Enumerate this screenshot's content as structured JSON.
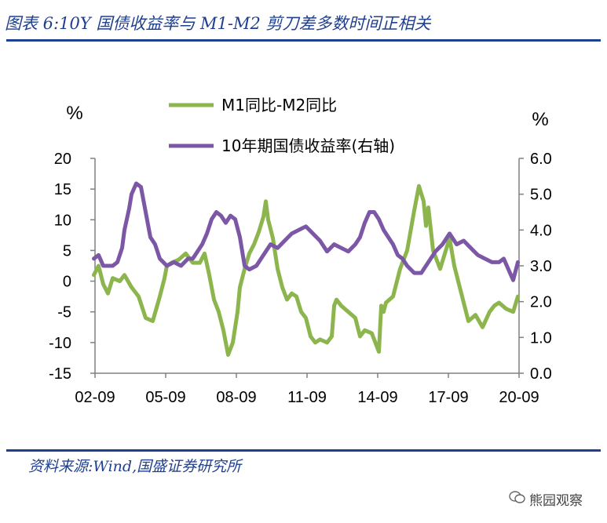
{
  "header": {
    "title": "图表 6:10Y 国债收益率与 M1-M2 剪刀差多数时间正相关"
  },
  "footer": {
    "source": "资料来源:Wind,国盛证券研究所",
    "watermark": "熊园观察"
  },
  "colors": {
    "m1m2": "#8db54d",
    "yield": "#7b57a6",
    "axis": "#808080",
    "brand": "#1f3f8f"
  },
  "chart_data": {
    "type": "line",
    "left_unit": "%",
    "right_unit": "%",
    "x_ticks": [
      "02-09",
      "05-09",
      "08-09",
      "11-09",
      "14-09",
      "17-09",
      "20-09"
    ],
    "y_left": {
      "ticks": [
        "20",
        "15",
        "10",
        "5",
        "0",
        "-5",
        "-10",
        "-15"
      ],
      "range": [
        -15,
        20
      ]
    },
    "y_right": {
      "ticks": [
        "6.0",
        "5.0",
        "4.0",
        "3.0",
        "2.0",
        "1.0",
        "0.0"
      ],
      "range": [
        0,
        6
      ]
    },
    "legend_position": "top-center",
    "series": [
      {
        "name": "M1同比-M2同比",
        "axis": "left",
        "x": [
          2002.7,
          2002.9,
          2003.1,
          2003.3,
          2003.5,
          2003.8,
          2004.0,
          2004.3,
          2004.6,
          2004.9,
          2005.2,
          2005.5,
          2005.7,
          2005.8,
          2006.0,
          2006.3,
          2006.6,
          2006.9,
          2007.2,
          2007.4,
          2007.6,
          2007.8,
          2008.0,
          2008.2,
          2008.4,
          2008.6,
          2008.8,
          2008.9,
          2009.1,
          2009.3,
          2009.5,
          2009.7,
          2009.9,
          2010.0,
          2010.1,
          2010.3,
          2010.5,
          2010.7,
          2010.9,
          2011.1,
          2011.3,
          2011.5,
          2011.7,
          2011.9,
          2012.1,
          2012.3,
          2012.6,
          2012.8,
          2012.9,
          2013.0,
          2013.2,
          2013.5,
          2013.8,
          2014.0,
          2014.2,
          2014.5,
          2014.8,
          2014.9,
          2015.0,
          2015.1,
          2015.4,
          2015.7,
          2016.0,
          2016.3,
          2016.5,
          2016.7,
          2016.8,
          2016.9,
          2017.1,
          2017.4,
          2017.6,
          2017.8,
          2018.0,
          2018.3,
          2018.6,
          2018.9,
          2019.2,
          2019.5,
          2019.7,
          2019.9,
          2020.2,
          2020.5,
          2020.7
        ],
        "y": [
          1.0,
          2.5,
          -0.5,
          -2.0,
          0.5,
          0.0,
          1.0,
          -1.0,
          -2.5,
          -6.0,
          -6.5,
          -2.5,
          0.5,
          2.5,
          3.0,
          3.5,
          4.5,
          3.0,
          3.0,
          4.5,
          1.0,
          -3.0,
          -5.0,
          -8.0,
          -12.0,
          -10.0,
          -5.0,
          -1.0,
          2.0,
          4.5,
          6.0,
          8.0,
          10.5,
          13.0,
          10.0,
          7.0,
          2.0,
          -1.0,
          -3.0,
          -2.0,
          -2.5,
          -5.0,
          -6.0,
          -9.0,
          -10.0,
          -9.5,
          -10.0,
          -9.0,
          -4.0,
          -3.0,
          -4.0,
          -5.0,
          -6.0,
          -9.0,
          -8.0,
          -8.5,
          -11.5,
          -4.0,
          -5.0,
          -3.5,
          -2.5,
          2.0,
          5.0,
          11.5,
          15.5,
          13.0,
          9.0,
          12.0,
          5.0,
          2.0,
          4.5,
          7.0,
          2.5,
          -2.0,
          -6.5,
          -5.5,
          -7.5,
          -5.0,
          -4.0,
          -3.5,
          -4.5,
          -5.0,
          -2.5
        ]
      },
      {
        "name": "10年期国债收益率(右轴)",
        "axis": "right",
        "x": [
          2002.7,
          2002.9,
          2003.1,
          2003.3,
          2003.5,
          2003.7,
          2003.9,
          2004.0,
          2004.2,
          2004.3,
          2004.5,
          2004.7,
          2004.9,
          2005.1,
          2005.3,
          2005.5,
          2005.8,
          2006.1,
          2006.4,
          2006.7,
          2006.9,
          2007.1,
          2007.3,
          2007.5,
          2007.7,
          2007.9,
          2008.1,
          2008.3,
          2008.5,
          2008.7,
          2008.9,
          2009.1,
          2009.3,
          2009.6,
          2009.9,
          2010.2,
          2010.5,
          2010.8,
          2011.1,
          2011.4,
          2011.7,
          2012.0,
          2012.3,
          2012.6,
          2012.9,
          2013.2,
          2013.5,
          2013.8,
          2014.0,
          2014.2,
          2014.4,
          2014.6,
          2014.8,
          2015.0,
          2015.2,
          2015.4,
          2015.6,
          2015.8,
          2016.0,
          2016.3,
          2016.6,
          2016.9,
          2017.2,
          2017.5,
          2017.8,
          2018.1,
          2018.4,
          2018.7,
          2019.0,
          2019.3,
          2019.6,
          2019.9,
          2020.1,
          2020.3,
          2020.5,
          2020.7
        ],
        "y": [
          3.2,
          3.3,
          3.0,
          3.0,
          3.0,
          3.1,
          3.5,
          4.0,
          4.6,
          5.0,
          5.3,
          5.2,
          4.5,
          3.8,
          3.6,
          3.2,
          3.0,
          3.1,
          3.0,
          3.2,
          3.2,
          3.4,
          3.6,
          3.9,
          4.3,
          4.5,
          4.4,
          4.2,
          4.4,
          4.3,
          3.8,
          3.0,
          2.9,
          3.0,
          3.3,
          3.6,
          3.5,
          3.7,
          3.9,
          4.0,
          4.1,
          3.9,
          3.7,
          3.4,
          3.6,
          3.5,
          3.4,
          3.6,
          3.8,
          4.2,
          4.5,
          4.5,
          4.3,
          4.0,
          3.8,
          3.6,
          3.3,
          3.2,
          3.0,
          2.8,
          2.8,
          3.1,
          3.4,
          3.6,
          3.9,
          3.6,
          3.7,
          3.5,
          3.3,
          3.2,
          3.1,
          3.1,
          3.2,
          2.9,
          2.6,
          3.1
        ]
      }
    ]
  }
}
